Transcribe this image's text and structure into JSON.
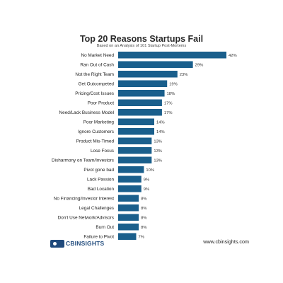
{
  "chart_data": {
    "type": "bar",
    "orientation": "horizontal",
    "title": "Top 20 Reasons Startups Fail",
    "subtitle": "Based on an Analysis of 101 Startup Post-Mortems",
    "categories": [
      "No Market Need",
      "Ran Out of Cash",
      "Not the Right Team",
      "Get Outcompeted",
      "Pricing/Cost Issues",
      "Poor Product",
      "Need/Lack Business Model",
      "Poor Marketing",
      "Ignore Customers",
      "Product Mis-Timed",
      "Lose Focus",
      "Disharmony on Team/Investors",
      "Pivot gone bad",
      "Lack Passion",
      "Bad Location",
      "No Financing/Investor Interest",
      "Legal Challenges",
      "Don't Use Network/Advisors",
      "Burn Out",
      "Failure to Pivot"
    ],
    "values": [
      42,
      29,
      23,
      19,
      18,
      17,
      17,
      14,
      14,
      13,
      13,
      13,
      10,
      9,
      9,
      8,
      8,
      8,
      8,
      7
    ],
    "value_labels": [
      "42%",
      "29%",
      "23%",
      "19%",
      "18%",
      "17%",
      "17%",
      "14%",
      "14%",
      "13%",
      "13%",
      "13%",
      "10%",
      "9%",
      "9%",
      "8%",
      "8%",
      "8%",
      "8%",
      "7%"
    ],
    "unit": "%",
    "bar_color": "#1a5f8c",
    "grid": false,
    "legend": "none"
  },
  "footer": {
    "logo_text": "CBINSIGHTS",
    "website": "www.cbinsights.com"
  }
}
